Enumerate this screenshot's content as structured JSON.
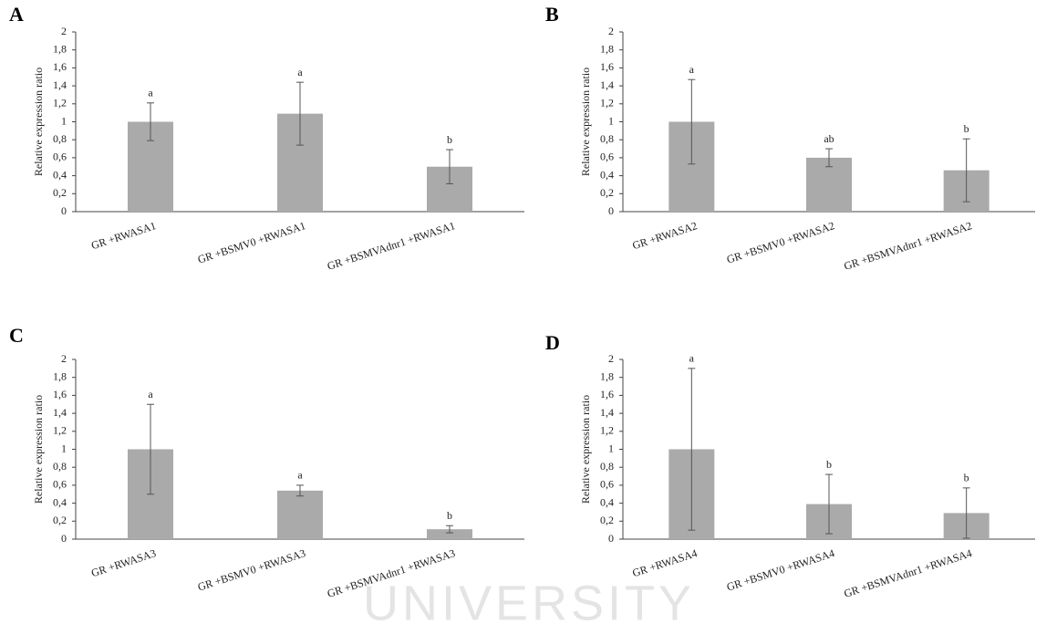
{
  "watermark": "UNIVERSITY",
  "chart_data": [
    {
      "type": "bar",
      "panel_label": "A",
      "y_label": "Relative expression ratio",
      "categories": [
        "GR +RWASA1",
        "GR +BSMV0 +RWASA1",
        "GR +BSMVAdnr1 +RWASA1"
      ],
      "values": [
        1.0,
        1.09,
        0.5
      ],
      "errors": [
        0.21,
        0.35,
        0.19
      ],
      "letters": [
        "a",
        "a",
        "b"
      ],
      "color": "#aaaaaa",
      "ylim": [
        0,
        2
      ],
      "yticks": [
        0,
        {
          "value": 0.2,
          "label": "0,2"
        },
        {
          "value": 0.4,
          "label": "0,4"
        },
        {
          "value": 0.6,
          "label": "0,6"
        },
        {
          "value": 0.8,
          "label": "0,8"
        },
        1,
        {
          "value": 1.2,
          "label": "1,2"
        },
        {
          "value": 1.4,
          "label": "1,4"
        },
        {
          "value": 1.6,
          "label": "1,6"
        },
        {
          "value": 1.8,
          "label": "1,8"
        },
        2
      ]
    },
    {
      "type": "bar",
      "panel_label": "B",
      "y_label": "Relative expression ratio",
      "categories": [
        "GR +RWASA2",
        "GR +BSMV0 +RWASA2",
        "GR +BSMVAdnr1 +RWASA2"
      ],
      "values": [
        1.0,
        0.6,
        0.46
      ],
      "errors": [
        0.47,
        0.1,
        0.35
      ],
      "letters": [
        "a",
        "ab",
        "b"
      ],
      "color": "#aaaaaa",
      "ylim": [
        0,
        2
      ],
      "yticks": [
        0,
        {
          "value": 0.2,
          "label": "0,2"
        },
        {
          "value": 0.4,
          "label": "0,4"
        },
        {
          "value": 0.6,
          "label": "0,6"
        },
        {
          "value": 0.8,
          "label": "0,8"
        },
        1,
        {
          "value": 1.2,
          "label": "1,2"
        },
        {
          "value": 1.4,
          "label": "1,4"
        },
        {
          "value": 1.6,
          "label": "1,6"
        },
        {
          "value": 1.8,
          "label": "1,8"
        },
        2
      ]
    },
    {
      "type": "bar",
      "panel_label": "C",
      "y_label": "Relative expression ratio",
      "categories": [
        "GR +RWASA3",
        "GR +BSMV0 +RWASA3",
        "GR +BSMVAdnr1 +RWASA3"
      ],
      "values": [
        1.0,
        0.54,
        0.11
      ],
      "errors": [
        0.5,
        0.06,
        0.04
      ],
      "letters": [
        "a",
        "a",
        "b"
      ],
      "color": "#aaaaaa",
      "ylim": [
        0,
        2
      ],
      "yticks": [
        0,
        {
          "value": 0.2,
          "label": "0,2"
        },
        {
          "value": 0.4,
          "label": "0,4"
        },
        {
          "value": 0.6,
          "label": "0,6"
        },
        {
          "value": 0.8,
          "label": "0,8"
        },
        1,
        {
          "value": 1.2,
          "label": "1,2"
        },
        {
          "value": 1.4,
          "label": "1,4"
        },
        {
          "value": 1.6,
          "label": "1,6"
        },
        {
          "value": 1.8,
          "label": "1,8"
        },
        2
      ]
    },
    {
      "type": "bar",
      "panel_label": "D",
      "y_label": "Relative expression ratio",
      "categories": [
        "GR +RWASA4",
        "GR +BSMV0 +RWASA4",
        "GR +BSMVAdnr1 +RWASA4"
      ],
      "values": [
        1.0,
        0.39,
        0.29
      ],
      "errors": [
        0.9,
        0.33,
        0.28
      ],
      "letters": [
        "a",
        "b",
        "b"
      ],
      "color": "#aaaaaa",
      "ylim": [
        0,
        2
      ],
      "yticks": [
        0,
        {
          "value": 0.2,
          "label": "0,2"
        },
        {
          "value": 0.4,
          "label": "0,4"
        },
        {
          "value": 0.6,
          "label": "0,6"
        },
        {
          "value": 0.8,
          "label": "0,8"
        },
        1,
        {
          "value": 1.2,
          "label": "1,2"
        },
        {
          "value": 1.4,
          "label": "1,4"
        },
        {
          "value": 1.6,
          "label": "1,6"
        },
        {
          "value": 1.8,
          "label": "1,8"
        },
        2
      ]
    }
  ]
}
